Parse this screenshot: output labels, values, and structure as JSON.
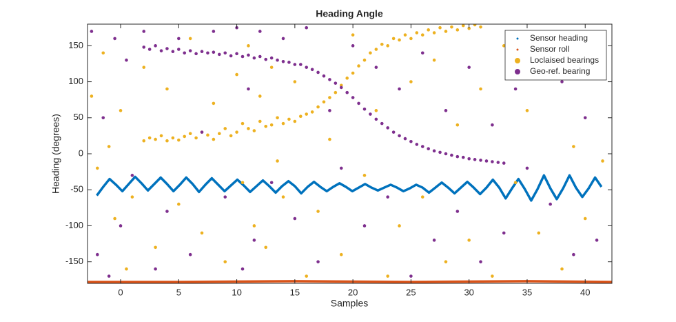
{
  "chart_data": {
    "type": "scatter",
    "title": "Heading Angle",
    "x_label": "Samples",
    "y_label": "Heading (degrees)",
    "xlim": [
      -2.85,
      42.3
    ],
    "xticks": [
      0,
      5,
      10,
      15,
      20,
      25,
      30,
      35,
      40
    ],
    "ylim": [
      -180,
      180
    ],
    "yticks": [
      -150,
      -100,
      -50,
      0,
      50,
      100,
      150
    ],
    "legend": "northeast",
    "box": true,
    "series": [
      {
        "name": "Sensor heading",
        "color": "#0072BD",
        "mode": "line",
        "x": [
          -2.05,
          -1.5,
          -0.95,
          -0.4,
          0.15,
          0.7,
          1.25,
          1.8,
          2.35,
          2.9,
          3.45,
          4,
          4.55,
          5.1,
          5.65,
          6.2,
          6.75,
          7.3,
          7.85,
          8.4,
          8.95,
          9.5,
          10.05,
          10.6,
          11.15,
          11.7,
          12.25,
          12.8,
          13.35,
          13.9,
          14.45,
          15,
          15.55,
          16.1,
          16.65,
          17.2,
          17.75,
          18.3,
          18.85,
          19.4,
          19.95,
          20.5,
          21.05,
          21.6,
          22.15,
          22.7,
          23.25,
          23.8,
          24.35,
          24.9,
          25.45,
          26,
          26.55,
          27.1,
          27.65,
          28.2,
          28.75,
          29.3,
          29.85,
          30.4,
          30.95,
          31.5,
          32.05,
          32.6,
          33.15,
          33.7,
          34.25,
          34.8,
          35.35,
          35.9,
          36.45,
          37,
          37.55,
          38.1,
          38.65,
          39.2,
          39.75,
          40.3,
          40.85,
          41.4
        ],
        "values": [
          -58,
          -46,
          -35,
          -43,
          -52,
          -42,
          -32,
          -41,
          -51,
          -42,
          -33,
          -42,
          -52,
          -43,
          -33,
          -42,
          -53,
          -43,
          -34,
          -43,
          -52,
          -44,
          -36,
          -44,
          -53,
          -45,
          -37,
          -45,
          -54,
          -45,
          -38,
          -45,
          -55,
          -46,
          -39,
          -46,
          -52,
          -46,
          -41,
          -46,
          -52,
          -47,
          -42,
          -47,
          -51,
          -47,
          -43,
          -47,
          -52,
          -48,
          -43,
          -47,
          -54,
          -47,
          -40,
          -47,
          -55,
          -47,
          -39,
          -47,
          -56,
          -47,
          -36,
          -47,
          -62,
          -48,
          -35,
          -49,
          -65,
          -49,
          -30,
          -48,
          -63,
          -48,
          -30,
          -47,
          -60,
          -48,
          -33,
          -46
        ]
      },
      {
        "name": "Sensor roll",
        "color": "#D95319",
        "mode": "line",
        "x": [
          -2.85,
          5,
          15,
          25,
          35,
          42.3
        ],
        "values": [
          -178,
          -178,
          -177,
          -178,
          -177,
          -178
        ]
      },
      {
        "name": "Loclaised bearings",
        "color": "#EDB120",
        "mode": "markers",
        "x": [
          2,
          2.5,
          3,
          3.5,
          4,
          4.5,
          5,
          5.5,
          6,
          6.5,
          7,
          7.5,
          8,
          8.5,
          9,
          9.5,
          10,
          10.5,
          11,
          11.5,
          12,
          12.5,
          13,
          13.5,
          14,
          14.5,
          15,
          15.5,
          16,
          16.5,
          17,
          17.5,
          18,
          18.5,
          19,
          19.5,
          20,
          20.5,
          21,
          21.5,
          22,
          22.5,
          23,
          23.5,
          24,
          24.5,
          25,
          25.5,
          26,
          26.5,
          27,
          27.5,
          28,
          28.5,
          29,
          29.5,
          30,
          30.5,
          31,
          -2.5,
          -2,
          -1.5,
          -1,
          -0.5,
          0,
          0.5,
          1,
          2,
          3,
          4,
          5,
          6,
          7,
          8,
          9,
          10,
          10.5,
          11,
          11.5,
          12,
          12.5,
          13,
          13.5,
          14,
          15,
          16,
          17,
          18,
          19,
          20,
          21,
          22,
          23,
          24,
          25,
          26,
          27,
          28,
          29,
          30,
          31,
          32,
          33,
          34,
          35,
          36,
          37,
          38,
          39,
          40,
          41,
          41.5
        ],
        "values": [
          18,
          22,
          20,
          25,
          18,
          22,
          19,
          24,
          28,
          22,
          30,
          26,
          20,
          28,
          35,
          25,
          30,
          42,
          35,
          32,
          45,
          38,
          40,
          50,
          42,
          48,
          45,
          52,
          55,
          58,
          65,
          72,
          78,
          85,
          95,
          105,
          112,
          122,
          130,
          140,
          145,
          152,
          150,
          160,
          158,
          165,
          160,
          168,
          165,
          172,
          168,
          175,
          170,
          176,
          172,
          178,
          174,
          179,
          176,
          80,
          -20,
          140,
          10,
          -90,
          60,
          -160,
          -60,
          120,
          -130,
          90,
          -70,
          160,
          -110,
          70,
          -150,
          110,
          -40,
          150,
          -100,
          80,
          -130,
          120,
          -10,
          -60,
          100,
          -170,
          -80,
          20,
          -140,
          165,
          -30,
          60,
          -170,
          -100,
          100,
          -60,
          130,
          -150,
          40,
          -120,
          90,
          -170,
          150,
          -40,
          60,
          -110,
          140,
          -160,
          10,
          -90,
          120,
          -10
        ]
      },
      {
        "name": "Geo-ref. bearing",
        "color": "#7E2F8E",
        "mode": "markers",
        "x": [
          2,
          2.5,
          3,
          3.5,
          4,
          4.5,
          5,
          5.5,
          6,
          6.5,
          7,
          7.5,
          8,
          8.5,
          9,
          9.5,
          10,
          10.5,
          11,
          11.5,
          12,
          12.5,
          13,
          13.5,
          14,
          14.5,
          15,
          15.5,
          16,
          16.5,
          17,
          17.5,
          18,
          18.5,
          19,
          19.5,
          20,
          20.5,
          21,
          21.5,
          22,
          22.5,
          23,
          23.5,
          24,
          24.5,
          25,
          25.5,
          26,
          26.5,
          27,
          27.5,
          28,
          28.5,
          29,
          29.5,
          30,
          30.5,
          31,
          31.5,
          32,
          32.5,
          33,
          -2.5,
          -2,
          -1.5,
          -1,
          -0.5,
          0,
          0.5,
          1,
          2,
          3,
          4,
          5,
          6,
          7,
          8,
          9,
          10,
          10.5,
          11,
          11.5,
          12,
          13,
          14,
          15,
          16,
          17,
          18,
          19,
          20,
          21,
          22,
          23,
          24,
          25,
          26,
          27,
          28,
          29,
          30,
          31,
          32,
          33,
          34,
          35,
          36,
          37,
          38,
          39,
          40,
          41,
          41.5
        ],
        "values": [
          148,
          145,
          150,
          143,
          146,
          142,
          145,
          140,
          143,
          139,
          142,
          140,
          141,
          138,
          140,
          136,
          139,
          135,
          137,
          133,
          135,
          131,
          133,
          130,
          128,
          127,
          124,
          124,
          120,
          117,
          113,
          108,
          103,
          98,
          92,
          85,
          78,
          70,
          62,
          55,
          48,
          42,
          36,
          30,
          25,
          21,
          17,
          13,
          10,
          7,
          4,
          2,
          0,
          -2,
          -4,
          -5,
          -7,
          -8,
          -9,
          -10,
          -11,
          -12,
          -13,
          170,
          -140,
          50,
          -170,
          160,
          -100,
          130,
          -30,
          170,
          -160,
          -80,
          160,
          -140,
          30,
          170,
          -60,
          175,
          -160,
          90,
          -120,
          170,
          -40,
          160,
          -90,
          175,
          -150,
          60,
          -20,
          150,
          -100,
          120,
          -60,
          90,
          -170,
          140,
          -120,
          60,
          -80,
          120,
          -150,
          40,
          -110,
          90,
          -20,
          150,
          -70,
          100,
          -140,
          50,
          -120,
          130
        ]
      }
    ]
  }
}
